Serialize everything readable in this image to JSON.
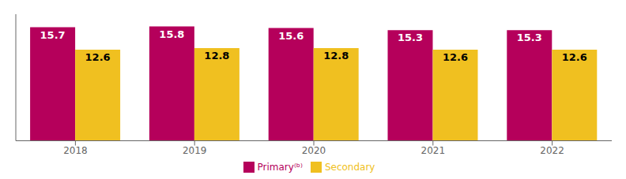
{
  "chart_data": {
    "type": "bar",
    "categories": [
      "2018",
      "2019",
      "2020",
      "2021",
      "2022"
    ],
    "series": [
      {
        "name": "Primary⁽ᵇ⁾",
        "color": "#B5005B",
        "values": [
          15.7,
          15.8,
          15.6,
          15.3,
          15.3
        ]
      },
      {
        "name": "Secondary",
        "color": "#F0C020",
        "values": [
          12.6,
          12.8,
          12.8,
          12.6,
          12.6
        ]
      }
    ],
    "ylim": [
      0,
      17.5
    ],
    "grid": false,
    "legend": "bottom",
    "data_labels": true,
    "tick_labels": "x"
  }
}
